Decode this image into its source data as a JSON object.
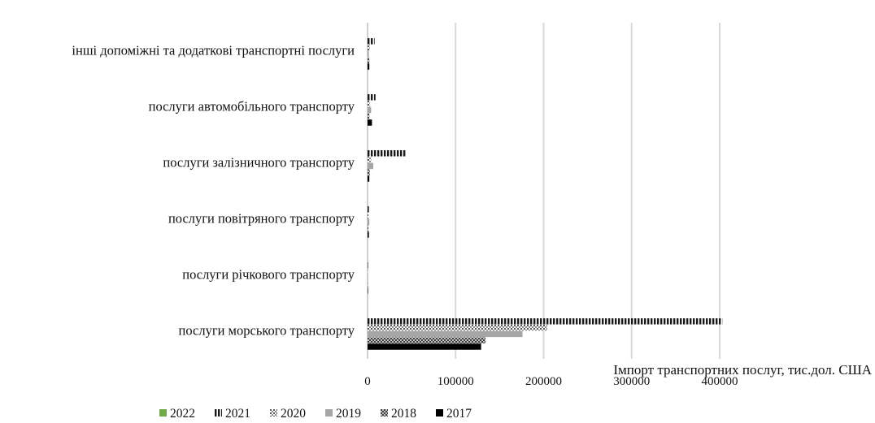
{
  "chart_data": {
    "type": "bar",
    "orientation": "horizontal",
    "xlabel": "Імпорт транспортних послуг, тис.дол. США",
    "xlim": [
      0,
      400000
    ],
    "xticks": [
      0,
      100000,
      200000,
      300000,
      400000
    ],
    "xtick_labels": [
      "0",
      "100000",
      "200000",
      "300000",
      "400000"
    ],
    "grid": "vertical",
    "legend_position": "bottom",
    "categories": [
      "інші допоміжні  та додаткові транспортні послуги",
      "послуги автомобільного транспорту",
      "послуги залізничного транспорту",
      "послуги повітряного транспорту",
      "послуги річкового транспорту",
      "послуги морського транспорту"
    ],
    "series": [
      {
        "name": "2022",
        "color": "#70ad47",
        "pattern": "solid-green",
        "values": [
          0,
          0,
          0,
          0,
          0,
          0
        ]
      },
      {
        "name": "2021",
        "color": "#1a1a1a",
        "pattern": "vertical-dash",
        "values": [
          8000,
          9000,
          43000,
          1500,
          500,
          403000
        ]
      },
      {
        "name": "2020",
        "color": "#555555",
        "pattern": "dotted-check",
        "values": [
          2500,
          2500,
          4000,
          1000,
          200,
          204000
        ]
      },
      {
        "name": "2019",
        "color": "#a6a6a6",
        "pattern": "solid-gray",
        "values": [
          1500,
          4000,
          6500,
          2000,
          300,
          176000
        ]
      },
      {
        "name": "2018",
        "color": "#595959",
        "pattern": "checker",
        "values": [
          2000,
          2000,
          2500,
          1000,
          300,
          134000
        ]
      },
      {
        "name": "2017",
        "color": "#000000",
        "pattern": "solid-black",
        "values": [
          2000,
          5000,
          2000,
          1500,
          500,
          129000
        ]
      }
    ]
  }
}
